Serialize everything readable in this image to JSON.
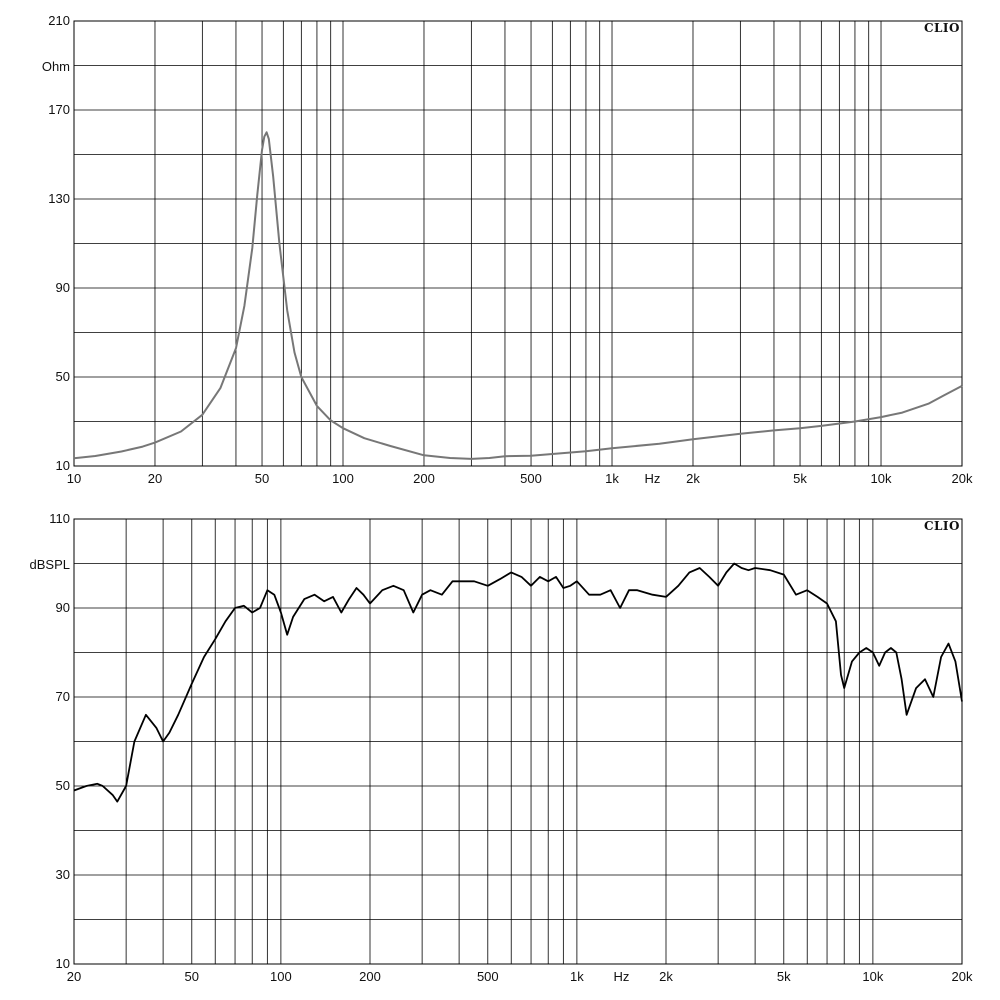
{
  "chart_data": [
    {
      "type": "line",
      "name": "impedance",
      "brand": "CLIO",
      "ylabel": "Ohm",
      "xlabel": "Hz",
      "xscale": "log",
      "xlim": [
        10,
        20000
      ],
      "ylim": [
        10,
        210
      ],
      "yticks": [
        10,
        50,
        90,
        130,
        170,
        210
      ],
      "xticks": [
        {
          "value": 10,
          "label": "10"
        },
        {
          "value": 20,
          "label": "20"
        },
        {
          "value": 50,
          "label": "50"
        },
        {
          "value": 100,
          "label": "100"
        },
        {
          "value": 200,
          "label": "200"
        },
        {
          "value": 500,
          "label": "500"
        },
        {
          "value": 1000,
          "label": "1k"
        },
        {
          "value": 2000,
          "label": "2k"
        },
        {
          "value": 5000,
          "label": "5k"
        },
        {
          "value": 10000,
          "label": "10k"
        },
        {
          "value": 20000,
          "label": "20k"
        }
      ],
      "grid": true,
      "color": "#777777",
      "series": [
        {
          "x": [
            10,
            12,
            15,
            18,
            20,
            25,
            30,
            35,
            40,
            43,
            46,
            48,
            50,
            51,
            52,
            53,
            55,
            58,
            62,
            66,
            70,
            80,
            90,
            100,
            120,
            150,
            200,
            250,
            300,
            350,
            400,
            500,
            600,
            800,
            1000,
            1500,
            2000,
            3000,
            4000,
            5000,
            6000,
            8000,
            10000,
            12000,
            15000,
            17000,
            20000
          ],
          "y": [
            13.5,
            14.5,
            16.5,
            18.7,
            20.5,
            25.5,
            33,
            45,
            63,
            82,
            108,
            132,
            152,
            158,
            160,
            157,
            140,
            110,
            80,
            61,
            50,
            37,
            30.5,
            27,
            22.5,
            19,
            14.8,
            13.6,
            13.2,
            13.6,
            14.4,
            14.6,
            15.4,
            16.6,
            18,
            20,
            22,
            24.5,
            26,
            27,
            28,
            30,
            32,
            34,
            38,
            41.5,
            46
          ]
        }
      ]
    },
    {
      "type": "line",
      "name": "spl",
      "brand": "CLIO",
      "ylabel": "dBSPL",
      "xlabel": "Hz",
      "xscale": "log",
      "xlim": [
        20,
        20000
      ],
      "ylim": [
        10,
        110
      ],
      "yticks": [
        10,
        30,
        50,
        70,
        90,
        110
      ],
      "xticks": [
        {
          "value": 20,
          "label": "20"
        },
        {
          "value": 50,
          "label": "50"
        },
        {
          "value": 100,
          "label": "100"
        },
        {
          "value": 200,
          "label": "200"
        },
        {
          "value": 500,
          "label": "500"
        },
        {
          "value": 1000,
          "label": "1k"
        },
        {
          "value": 2000,
          "label": "2k"
        },
        {
          "value": 5000,
          "label": "5k"
        },
        {
          "value": 10000,
          "label": "10k"
        },
        {
          "value": 20000,
          "label": "20k"
        }
      ],
      "grid": true,
      "color": "#000000",
      "series": [
        {
          "x": [
            20,
            22,
            24,
            25,
            27,
            28,
            30,
            32,
            35,
            38,
            40,
            42,
            45,
            50,
            55,
            60,
            65,
            70,
            75,
            80,
            85,
            90,
            95,
            100,
            105,
            110,
            120,
            130,
            140,
            150,
            160,
            170,
            180,
            190,
            200,
            220,
            240,
            260,
            280,
            300,
            320,
            350,
            380,
            400,
            450,
            500,
            550,
            600,
            650,
            700,
            750,
            800,
            850,
            900,
            950,
            1000,
            1100,
            1200,
            1300,
            1400,
            1500,
            1600,
            1800,
            2000,
            2200,
            2400,
            2600,
            2800,
            3000,
            3200,
            3400,
            3600,
            3800,
            4000,
            4500,
            5000,
            5500,
            6000,
            6500,
            7000,
            7500,
            7800,
            8000,
            8500,
            9000,
            9500,
            10000,
            10500,
            11000,
            11500,
            12000,
            12500,
            13000,
            14000,
            15000,
            16000,
            17000,
            18000,
            19000,
            20000
          ],
          "y": [
            49,
            50,
            50.5,
            50,
            48,
            46.5,
            50,
            60,
            66,
            63,
            60,
            62,
            66,
            73,
            79,
            83,
            87,
            90,
            90.5,
            89,
            90,
            94,
            93,
            89,
            84,
            88,
            92,
            93,
            91.5,
            92.5,
            89,
            92,
            94.5,
            93,
            91,
            94,
            95,
            94,
            89,
            93,
            94,
            93,
            96,
            96,
            96,
            95,
            96.5,
            98,
            97,
            95,
            97,
            96,
            97,
            94.5,
            95,
            96,
            93,
            93,
            94,
            90,
            94,
            94,
            93,
            92.5,
            95,
            98,
            99,
            97,
            95,
            98,
            100,
            99,
            98.5,
            99,
            98.5,
            97.5,
            93,
            94,
            92.5,
            91,
            87,
            75,
            72,
            78,
            80,
            81,
            80,
            77,
            80,
            81,
            80,
            74,
            66,
            72,
            74,
            70,
            79,
            82,
            78,
            69
          ]
        }
      ]
    }
  ]
}
